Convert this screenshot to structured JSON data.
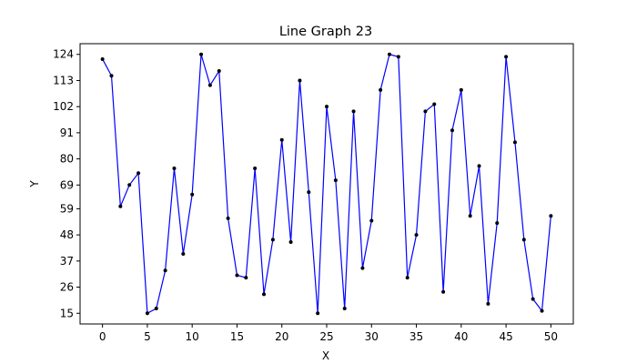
{
  "chart_data": {
    "type": "line",
    "title": "Line Graph 23",
    "xlabel": "X",
    "ylabel": "Y",
    "xlim": [
      -2.5,
      52.5
    ],
    "ylim": [
      10.5,
      128.5
    ],
    "grid": false,
    "x_ticks": [
      0,
      5,
      10,
      15,
      20,
      25,
      30,
      35,
      40,
      45,
      50
    ],
    "y_ticks": [
      15,
      26,
      37,
      48,
      59,
      69,
      80,
      91,
      102,
      113,
      124
    ],
    "line_color": "#0000ff",
    "marker_color": "#000000",
    "x": [
      0,
      1,
      2,
      3,
      4,
      5,
      6,
      7,
      8,
      9,
      10,
      11,
      12,
      13,
      14,
      15,
      16,
      17,
      18,
      19,
      20,
      21,
      22,
      23,
      24,
      25,
      26,
      27,
      28,
      29,
      30,
      31,
      32,
      33,
      34,
      35,
      36,
      37,
      38,
      39,
      40,
      41,
      42,
      43,
      44,
      45,
      46,
      47,
      48,
      49,
      50
    ],
    "y": [
      122,
      115,
      60,
      69,
      74,
      15,
      17,
      33,
      76,
      40,
      65,
      124,
      111,
      117,
      55,
      31,
      30,
      76,
      23,
      46,
      88,
      45,
      113,
      66,
      15,
      102,
      71,
      17,
      100,
      34,
      54,
      109,
      124,
      123,
      30,
      48,
      100,
      103,
      24,
      92,
      109,
      56,
      77,
      19,
      53,
      123,
      87,
      46,
      21,
      16,
      56
    ]
  }
}
